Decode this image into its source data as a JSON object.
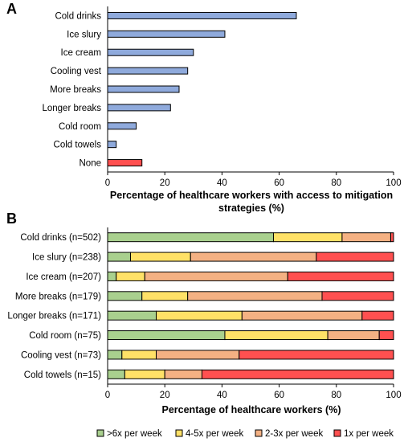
{
  "colors": {
    "bar_blue": "#8faadc",
    "bar_red": "#ff5050",
    "freq": [
      "#a9d08e",
      "#ffe167",
      "#f4b183",
      "#ff5050"
    ]
  },
  "chart_data": [
    {
      "panel": "A",
      "type": "bar",
      "orientation": "horizontal",
      "categories": [
        "Cold drinks",
        "Ice slury",
        "Ice cream",
        "Cooling vest",
        "More breaks",
        "Longer breaks",
        "Cold room",
        "Cold towels",
        "None"
      ],
      "values": [
        66,
        41,
        30,
        28,
        25,
        22,
        10,
        3,
        12
      ],
      "highlight_category": "None",
      "xlabel_lines": [
        "Percentage of healthcare workers with  access to mitigation",
        "strategies (%)"
      ],
      "xlim": [
        0,
        100
      ],
      "xticks": [
        0,
        20,
        40,
        60,
        80,
        100
      ],
      "grid": false
    },
    {
      "panel": "B",
      "type": "bar",
      "orientation": "horizontal",
      "stacked": true,
      "categories": [
        "Cold drinks (n=502)",
        "Ice slury (n=238)",
        "Ice cream (n=207)",
        "More breaks (n=179)",
        "Longer breaks (n=171)",
        "Cold room (n=75)",
        "Cooling vest (n=73)",
        "Cold towels (n=15)"
      ],
      "series": [
        {
          "name": ">6x per week",
          "values": [
            58,
            8,
            3,
            12,
            17,
            41,
            5,
            6
          ]
        },
        {
          "name": "4-5x per week",
          "values": [
            24,
            21,
            10,
            16,
            30,
            36,
            12,
            14
          ]
        },
        {
          "name": "2-3x per week",
          "values": [
            17,
            44,
            50,
            47,
            42,
            18,
            29,
            13
          ]
        },
        {
          "name": "1x per week",
          "values": [
            1,
            27,
            37,
            25,
            11,
            5,
            54,
            67
          ]
        }
      ],
      "xlabel": "Percentage of healthcare workers (%)",
      "xlim": [
        0,
        100
      ],
      "xticks": [
        0,
        20,
        40,
        60,
        80,
        100
      ],
      "legend_position": "bottom",
      "grid": false
    }
  ]
}
